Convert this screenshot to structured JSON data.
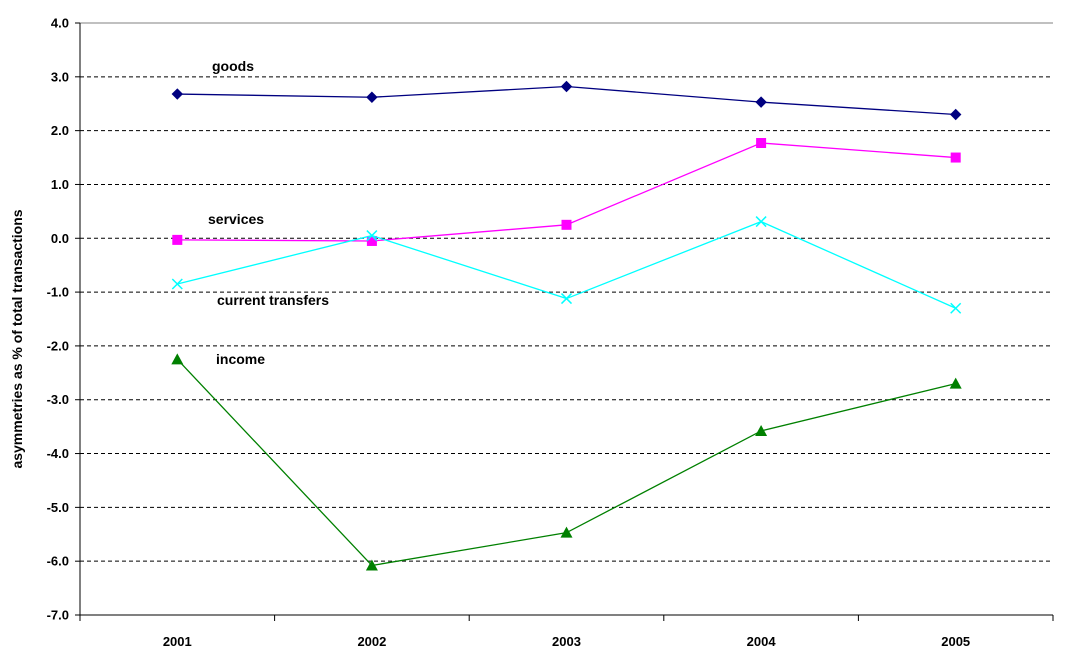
{
  "chart_data": {
    "type": "line",
    "title": "",
    "xlabel": "",
    "ylabel": "asymmetries as % of total transactions",
    "ylim": [
      -7.0,
      4.0
    ],
    "ytick_step": 1.0,
    "y_tick_labels": [
      "4.0",
      "3.0",
      "2.0",
      "1.0",
      "0.0",
      "-1.0",
      "-2.0",
      "-3.0",
      "-4.0",
      "-5.0",
      "-6.0",
      "-7.0"
    ],
    "categories": [
      "2001",
      "2002",
      "2003",
      "2004",
      "2005"
    ],
    "grid": "horizontal dashed",
    "legend": "none (series labelled inline)",
    "series": [
      {
        "name": "goods",
        "color": "#000080",
        "marker": "diamond",
        "values": [
          2.68,
          2.62,
          2.82,
          2.53,
          2.3
        ]
      },
      {
        "name": "services",
        "color": "#FF00FF",
        "marker": "square",
        "values": [
          -0.03,
          -0.05,
          0.25,
          1.77,
          1.5
        ]
      },
      {
        "name": "current transfers",
        "color": "#00FFFF",
        "marker": "x",
        "values": [
          -0.85,
          0.05,
          -1.12,
          0.31,
          -1.3
        ]
      },
      {
        "name": "income",
        "color": "#008000",
        "marker": "triangle",
        "values": [
          -2.25,
          -6.08,
          -5.47,
          -3.58,
          -2.7
        ]
      }
    ]
  }
}
